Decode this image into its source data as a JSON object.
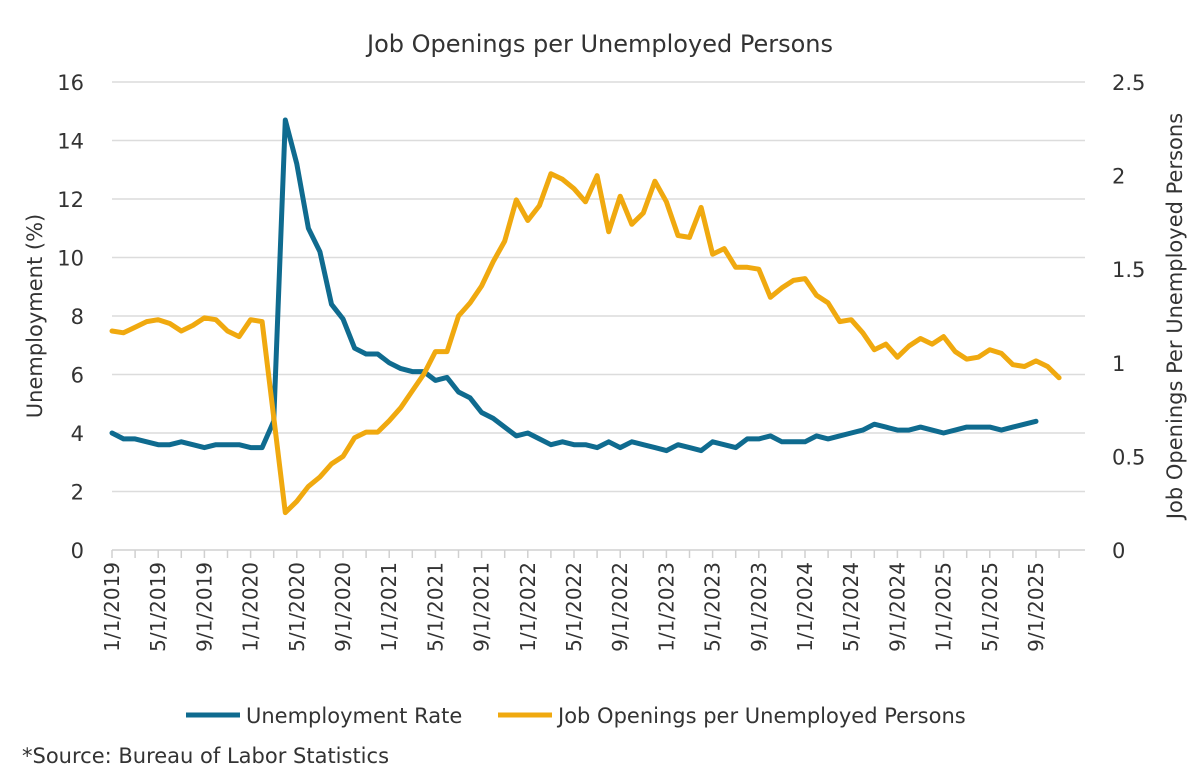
{
  "chart_data": {
    "type": "line",
    "title": "Job Openings per Unemployed Persons",
    "ylabel": "Unemployment (%)",
    "y2label": "Job Openings Per Unemployed Persons",
    "ylim": [
      0,
      16
    ],
    "y2lim": [
      0,
      2.5
    ],
    "yticks": [
      "0",
      "2",
      "4",
      "6",
      "8",
      "10",
      "12",
      "14",
      "16"
    ],
    "y2ticks": [
      "0",
      "0.5",
      "1",
      "1.5",
      "2",
      "2.5"
    ],
    "xstart": "1/1/2019",
    "xticks": [
      "1/1/2019",
      "5/1/2019",
      "9/1/2019",
      "1/1/2020",
      "5/1/2020",
      "9/1/2020",
      "1/1/2021",
      "5/1/2021",
      "9/1/2021",
      "1/1/2022",
      "5/1/2022",
      "9/1/2022",
      "1/1/2023",
      "5/1/2023",
      "9/1/2023",
      "1/1/2024",
      "5/1/2024",
      "9/1/2024",
      "1/1/2025",
      "5/1/2025",
      "9/1/2025"
    ],
    "grid": true,
    "legend_position": "bottom",
    "series": [
      {
        "name": "Unemployment Rate",
        "axis": "left",
        "color": "#0f6b8f",
        "values": [
          4.0,
          3.8,
          3.8,
          3.7,
          3.6,
          3.6,
          3.7,
          3.6,
          3.5,
          3.6,
          3.6,
          3.6,
          3.5,
          3.5,
          4.4,
          14.7,
          13.2,
          11.0,
          10.2,
          8.4,
          7.9,
          6.9,
          6.7,
          6.7,
          6.4,
          6.2,
          6.1,
          6.1,
          5.8,
          5.9,
          5.4,
          5.2,
          4.7,
          4.5,
          4.2,
          3.9,
          4.0,
          3.8,
          3.6,
          3.7,
          3.6,
          3.6,
          3.5,
          3.7,
          3.5,
          3.7,
          3.6,
          3.5,
          3.4,
          3.6,
          3.5,
          3.4,
          3.7,
          3.6,
          3.5,
          3.8,
          3.8,
          3.9,
          3.7,
          3.7,
          3.7,
          3.9,
          3.8,
          3.9,
          4.0,
          4.1,
          4.3,
          4.2,
          4.1,
          4.1,
          4.2,
          4.1,
          4.0,
          4.1,
          4.2,
          4.2,
          4.2,
          4.1,
          4.2,
          4.3,
          4.4
        ]
      },
      {
        "name": "Job Openings per Unemployed Persons",
        "axis": "right",
        "color": "#f0a90f",
        "values": [
          1.17,
          1.16,
          1.19,
          1.22,
          1.23,
          1.21,
          1.17,
          1.2,
          1.24,
          1.23,
          1.17,
          1.14,
          1.23,
          1.22,
          0.71,
          0.2,
          0.26,
          0.34,
          0.39,
          0.46,
          0.5,
          0.6,
          0.63,
          0.63,
          0.69,
          0.76,
          0.85,
          0.94,
          1.06,
          1.06,
          1.25,
          1.32,
          1.41,
          1.54,
          1.65,
          1.87,
          1.76,
          1.84,
          2.01,
          1.98,
          1.93,
          1.86,
          2.0,
          1.7,
          1.89,
          1.74,
          1.8,
          1.97,
          1.86,
          1.68,
          1.67,
          1.83,
          1.58,
          1.61,
          1.51,
          1.51,
          1.5,
          1.35,
          1.4,
          1.44,
          1.45,
          1.36,
          1.32,
          1.22,
          1.23,
          1.16,
          1.07,
          1.1,
          1.03,
          1.09,
          1.13,
          1.1,
          1.14,
          1.06,
          1.02,
          1.03,
          1.07,
          1.05,
          0.99,
          0.98,
          1.01,
          0.98,
          0.92
        ]
      }
    ]
  },
  "source": "*Source: Bureau of Labor Statistics"
}
